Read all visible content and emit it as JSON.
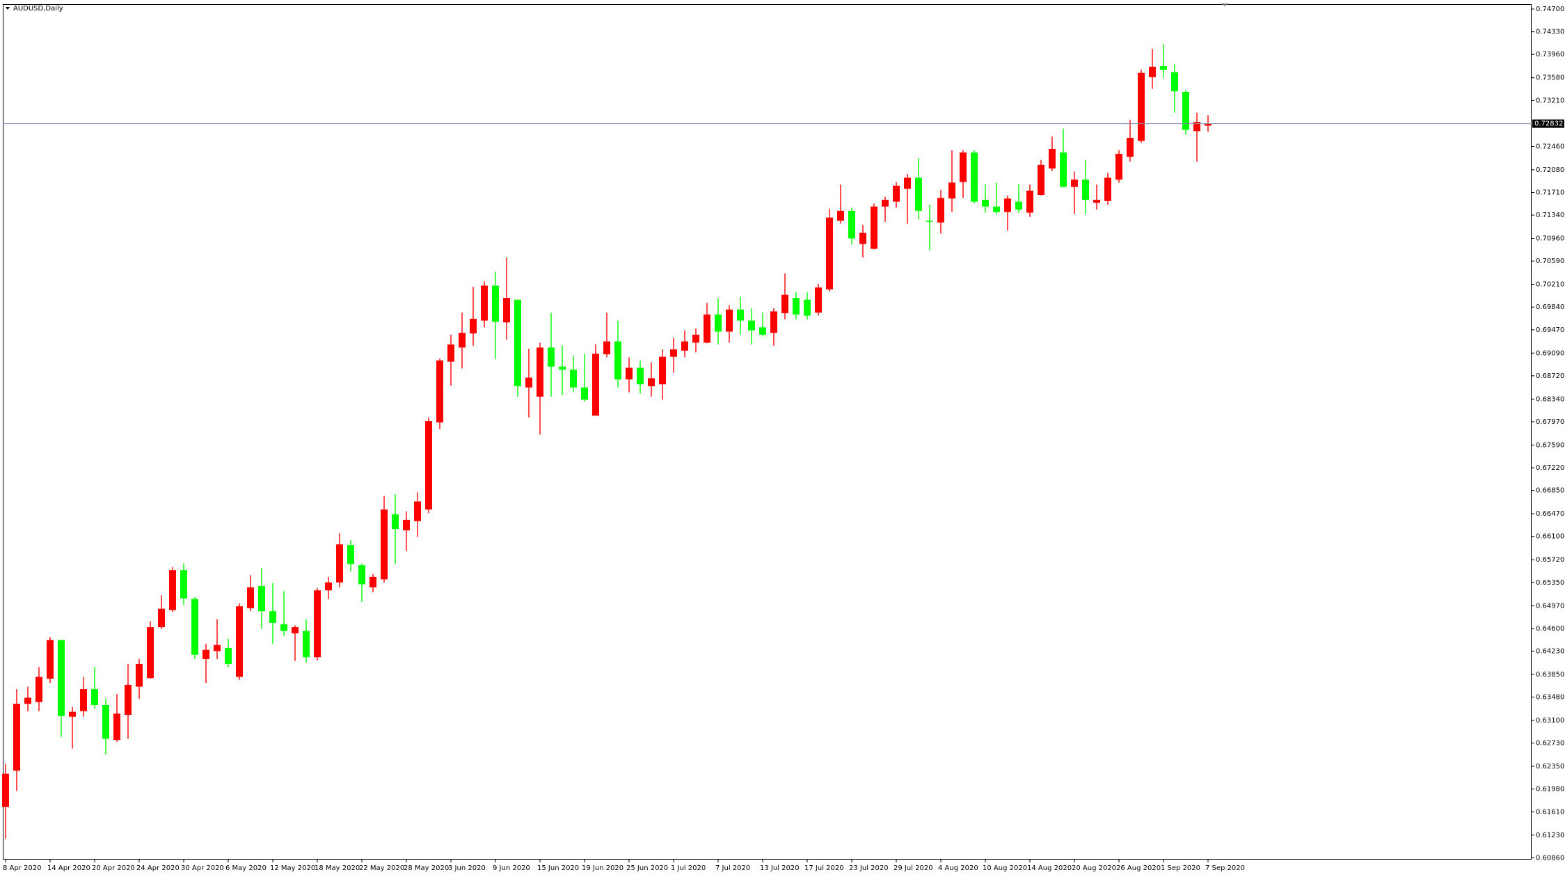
{
  "chart_data": {
    "type": "candlestick",
    "title": "AUDUSD,Daily",
    "up_color": "#ff0000",
    "down_color": "#00ff00",
    "categories": [
      "8 Apr 2020",
      null,
      null,
      null,
      "14 Apr 2020",
      null,
      null,
      null,
      "20 Apr 2020",
      null,
      null,
      null,
      "24 Apr 2020",
      null,
      null,
      null,
      "30 Apr 2020",
      null,
      null,
      null,
      "6 May 2020",
      null,
      null,
      null,
      "12 May 2020",
      null,
      null,
      null,
      "18 May 2020",
      null,
      null,
      null,
      "22 May 2020",
      null,
      null,
      null,
      "28 May 2020",
      null,
      null,
      null,
      "3 Jun 2020",
      null,
      null,
      null,
      "9 Jun 2020",
      null,
      null,
      null,
      "15 Jun 2020",
      null,
      null,
      null,
      "19 Jun 2020",
      null,
      null,
      null,
      "25 Jun 2020",
      null,
      null,
      null,
      "1 Jul 2020",
      null,
      null,
      null,
      "7 Jul 2020",
      null,
      null,
      null,
      "13 Jul 2020",
      null,
      null,
      null,
      "17 Jul 2020",
      null,
      null,
      null,
      "23 Jul 2020",
      null,
      null,
      null,
      "29 Jul 2020",
      null,
      null,
      null,
      "4 Aug 2020",
      null,
      null,
      null,
      "10 Aug 2020",
      null,
      null,
      null,
      "14 Aug 2020",
      null,
      null,
      null,
      "20 Aug 2020",
      null,
      null,
      null,
      "26 Aug 2020",
      null,
      null,
      null,
      "1 Sep 2020",
      null,
      null,
      null,
      "7 Sep 2020"
    ],
    "open": [
      0.6169,
      0.6228,
      0.6337,
      0.634,
      0.6378,
      0.6441,
      0.6316,
      0.6325,
      0.6361,
      0.6335,
      0.6278,
      0.6319,
      0.6365,
      0.6379,
      0.6462,
      0.649,
      0.6555,
      0.6508,
      0.641,
      0.6423,
      0.6428,
      0.6381,
      0.6493,
      0.6529,
      0.6488,
      0.6467,
      0.6452,
      0.6456,
      0.6413,
      0.6522,
      0.6535,
      0.6596,
      0.6563,
      0.6527,
      0.654,
      0.6646,
      0.662,
      0.6635,
      0.6654,
      0.6796,
      0.6895,
      0.6918,
      0.6941,
      0.6962,
      0.7019,
      0.6959,
      0.6996,
      0.6853,
      0.6838,
      0.6918,
      0.6887,
      0.6882,
      0.6853,
      0.6807,
      0.6907,
      0.6928,
      0.6866,
      0.6885,
      0.6855,
      0.6858,
      0.6903,
      0.6913,
      0.6926,
      0.6926,
      0.6972,
      0.6944,
      0.698,
      0.6962,
      0.6951,
      0.6942,
      0.6974,
      0.6999,
      0.6996,
      0.6975,
      0.7013,
      0.7125,
      0.7141,
      0.7087,
      0.7079,
      0.7148,
      0.7156,
      0.7177,
      0.7195,
      0.7125,
      0.7122,
      0.7161,
      0.7188,
      0.7236,
      0.7159,
      0.7148,
      0.7139,
      0.7156,
      0.7138,
      0.7167,
      0.721,
      0.7236,
      0.718,
      0.7192,
      0.7154,
      0.7157,
      0.7192,
      0.7229,
      0.7255,
      0.7359,
      0.7377,
      0.7367,
      0.7335,
      0.7271,
      0.728
    ],
    "high": [
      0.6239,
      0.6361,
      0.6365,
      0.6397,
      0.6446,
      0.6441,
      0.6332,
      0.6381,
      0.6397,
      0.6345,
      0.6353,
      0.6402,
      0.641,
      0.6472,
      0.6514,
      0.656,
      0.6566,
      0.6511,
      0.6435,
      0.6475,
      0.6443,
      0.6501,
      0.6547,
      0.6558,
      0.6534,
      0.6521,
      0.6465,
      0.6475,
      0.6526,
      0.6544,
      0.6615,
      0.6604,
      0.6566,
      0.6549,
      0.6676,
      0.6679,
      0.6651,
      0.6682,
      0.6804,
      0.69,
      0.6939,
      0.6975,
      0.7017,
      0.7026,
      0.7042,
      0.7065,
      0.6996,
      0.6916,
      0.6926,
      0.6975,
      0.6921,
      0.6905,
      0.6908,
      0.6923,
      0.6975,
      0.6962,
      0.6902,
      0.6897,
      0.6894,
      0.6915,
      0.6934,
      0.6946,
      0.6949,
      0.6991,
      0.6998,
      0.6987,
      0.7001,
      0.6982,
      0.6975,
      0.6982,
      0.7039,
      0.7009,
      0.7008,
      0.7022,
      0.7144,
      0.7184,
      0.7146,
      0.7118,
      0.7153,
      0.7164,
      0.7188,
      0.7201,
      0.7227,
      0.7151,
      0.7175,
      0.724,
      0.724,
      0.724,
      0.7184,
      0.7187,
      0.7166,
      0.7185,
      0.7184,
      0.7224,
      0.7262,
      0.7275,
      0.7205,
      0.7223,
      0.7184,
      0.7203,
      0.724,
      0.7289,
      0.7371,
      0.7405,
      0.7413,
      0.738,
      0.7338,
      0.7301,
      0.7297
    ],
    "low": [
      0.6117,
      0.6195,
      0.6325,
      0.6325,
      0.6371,
      0.6283,
      0.6264,
      0.6316,
      0.6329,
      0.6254,
      0.6275,
      0.628,
      0.6345,
      0.6378,
      0.6459,
      0.6487,
      0.6498,
      0.641,
      0.6371,
      0.641,
      0.6397,
      0.6376,
      0.6488,
      0.6459,
      0.6435,
      0.6448,
      0.6407,
      0.6404,
      0.6408,
      0.6508,
      0.6527,
      0.6553,
      0.6503,
      0.6519,
      0.6535,
      0.6565,
      0.6586,
      0.6609,
      0.6648,
      0.6785,
      0.6856,
      0.6884,
      0.6921,
      0.6951,
      0.6899,
      0.6931,
      0.6838,
      0.6804,
      0.6776,
      0.6838,
      0.684,
      0.6845,
      0.683,
      0.6807,
      0.6902,
      0.6853,
      0.6845,
      0.6843,
      0.6838,
      0.6833,
      0.6877,
      0.6902,
      0.691,
      0.6925,
      0.6923,
      0.6926,
      0.6939,
      0.6923,
      0.6936,
      0.6921,
      0.6964,
      0.6964,
      0.6964,
      0.697,
      0.7009,
      0.712,
      0.7086,
      0.7065,
      0.7078,
      0.7123,
      0.7146,
      0.712,
      0.7127,
      0.7076,
      0.7104,
      0.7139,
      0.7162,
      0.7153,
      0.7138,
      0.7135,
      0.7109,
      0.7138,
      0.7131,
      0.7166,
      0.7206,
      0.7179,
      0.7136,
      0.7136,
      0.7143,
      0.7151,
      0.7187,
      0.7221,
      0.7252,
      0.734,
      0.7358,
      0.7301,
      0.7265,
      0.7221,
      0.727
    ],
    "close": [
      0.6223,
      0.6337,
      0.6347,
      0.6381,
      0.6441,
      0.6317,
      0.6324,
      0.6361,
      0.6335,
      0.628,
      0.6321,
      0.6368,
      0.6402,
      0.6462,
      0.6492,
      0.6555,
      0.6509,
      0.6417,
      0.6425,
      0.6433,
      0.6402,
      0.6496,
      0.6527,
      0.6488,
      0.6469,
      0.6456,
      0.6462,
      0.6413,
      0.6522,
      0.6535,
      0.6597,
      0.6565,
      0.6532,
      0.6544,
      0.6654,
      0.6622,
      0.6637,
      0.6667,
      0.6798,
      0.6897,
      0.6923,
      0.6942,
      0.6965,
      0.7019,
      0.696,
      0.6999,
      0.6855,
      0.6869,
      0.6918,
      0.6887,
      0.6882,
      0.6853,
      0.6833,
      0.6908,
      0.6928,
      0.6866,
      0.6885,
      0.6858,
      0.6868,
      0.6903,
      0.6915,
      0.6928,
      0.6939,
      0.6972,
      0.6944,
      0.698,
      0.6962,
      0.6946,
      0.6939,
      0.6977,
      0.7004,
      0.6972,
      0.697,
      0.7016,
      0.713,
      0.7141,
      0.7096,
      0.7105,
      0.7148,
      0.7159,
      0.7182,
      0.7195,
      0.7141,
      0.7123,
      0.7162,
      0.7187,
      0.7236,
      0.7156,
      0.7148,
      0.7139,
      0.7161,
      0.7143,
      0.7174,
      0.7216,
      0.7242,
      0.718,
      0.7192,
      0.7159,
      0.7159,
      0.7195,
      0.7234,
      0.726,
      0.7366,
      0.7376,
      0.7371,
      0.7336,
      0.7273,
      0.7286,
      0.7283
    ],
    "current_price": 0.72832,
    "ylim": [
      0.6083,
      0.7478
    ],
    "yticks": [
      {
        "value": 0.747,
        "label": "0.74700"
      },
      {
        "value": 0.7433,
        "label": "0.74330"
      },
      {
        "value": 0.7396,
        "label": "0.73960"
      },
      {
        "value": 0.7358,
        "label": "0.73580"
      },
      {
        "value": 0.7321,
        "label": "0.73210"
      },
      {
        "value": 0.7246,
        "label": "0.72460"
      },
      {
        "value": 0.7208,
        "label": "0.72080"
      },
      {
        "value": 0.7171,
        "label": "0.71710"
      },
      {
        "value": 0.7134,
        "label": "0.71340"
      },
      {
        "value": 0.7096,
        "label": "0.70960"
      },
      {
        "value": 0.7059,
        "label": "0.70590"
      },
      {
        "value": 0.7021,
        "label": "0.70210"
      },
      {
        "value": 0.6984,
        "label": "0.69840"
      },
      {
        "value": 0.6947,
        "label": "0.69470"
      },
      {
        "value": 0.6909,
        "label": "0.69090"
      },
      {
        "value": 0.6872,
        "label": "0.68720"
      },
      {
        "value": 0.6834,
        "label": "0.68340"
      },
      {
        "value": 0.6797,
        "label": "0.67970"
      },
      {
        "value": 0.6759,
        "label": "0.67590"
      },
      {
        "value": 0.6722,
        "label": "0.67220"
      },
      {
        "value": 0.6685,
        "label": "0.66850"
      },
      {
        "value": 0.6647,
        "label": "0.66470"
      },
      {
        "value": 0.661,
        "label": "0.66100"
      },
      {
        "value": 0.6572,
        "label": "0.65720"
      },
      {
        "value": 0.6535,
        "label": "0.65350"
      },
      {
        "value": 0.6497,
        "label": "0.64970"
      },
      {
        "value": 0.646,
        "label": "0.64600"
      },
      {
        "value": 0.6423,
        "label": "0.64230"
      },
      {
        "value": 0.6385,
        "label": "0.63850"
      },
      {
        "value": 0.6348,
        "label": "0.63480"
      },
      {
        "value": 0.631,
        "label": "0.63100"
      },
      {
        "value": 0.6273,
        "label": "0.62730"
      },
      {
        "value": 0.6235,
        "label": "0.62350"
      },
      {
        "value": 0.6198,
        "label": "0.61980"
      },
      {
        "value": 0.6161,
        "label": "0.61610"
      },
      {
        "value": 0.6123,
        "label": "0.61230"
      },
      {
        "value": 0.6086,
        "label": "0.60860"
      }
    ]
  }
}
